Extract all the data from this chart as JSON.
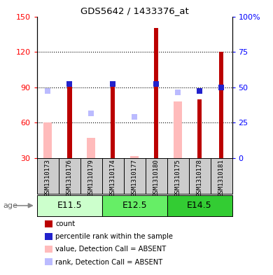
{
  "title": "GDS5642 / 1433376_at",
  "samples": [
    "GSM1310173",
    "GSM1310176",
    "GSM1310179",
    "GSM1310174",
    "GSM1310177",
    "GSM1310180",
    "GSM1310175",
    "GSM1310178",
    "GSM1310181"
  ],
  "groups": [
    {
      "label": "E11.5",
      "samples": [
        0,
        1,
        2
      ],
      "color": "#ccffcc"
    },
    {
      "label": "E12.5",
      "samples": [
        3,
        4,
        5
      ],
      "color": "#66ee66"
    },
    {
      "label": "E14.5",
      "samples": [
        6,
        7,
        8
      ],
      "color": "#33cc33"
    }
  ],
  "count_values": [
    null,
    95,
    null,
    95,
    null,
    140,
    null,
    80,
    120
  ],
  "rank_values": [
    null,
    93,
    null,
    93,
    null,
    93,
    null,
    87,
    90
  ],
  "absent_value": [
    60,
    null,
    47,
    null,
    32,
    null,
    78,
    null,
    null
  ],
  "absent_rank": [
    87,
    null,
    68,
    null,
    65,
    null,
    86,
    null,
    null
  ],
  "ylim_left": [
    30,
    150
  ],
  "ylim_right": [
    0,
    100
  ],
  "yticks_left": [
    30,
    60,
    90,
    120,
    150
  ],
  "yticks_right": [
    0,
    25,
    50,
    75,
    100
  ],
  "ytick_labels_left": [
    "30",
    "60",
    "90",
    "120",
    "150"
  ],
  "ytick_labels_right": [
    "0",
    "25",
    "50",
    "75",
    "100%"
  ],
  "grid_lines": [
    60,
    90,
    120
  ],
  "count_color": "#bb0000",
  "rank_color": "#2222cc",
  "absent_value_color": "#ffbbbb",
  "absent_rank_color": "#bbbbff",
  "count_bar_width": 0.22,
  "absent_bar_width": 0.38,
  "marker_size": 6
}
